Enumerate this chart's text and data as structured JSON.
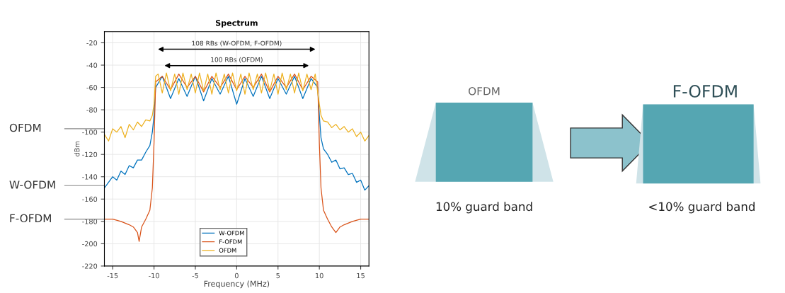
{
  "chart_data": [
    {
      "type": "line",
      "title": "Spectrum",
      "xlabel": "Frequency (MHz)",
      "ylabel": "dBm",
      "xlim": [
        -16,
        16
      ],
      "xticks": [
        -15,
        -10,
        -5,
        0,
        5,
        10,
        15
      ],
      "ylim": [
        -220,
        -10
      ],
      "yticks": [
        -220,
        -200,
        -180,
        -160,
        -140,
        -120,
        -100,
        -80,
        -60,
        -40,
        -20
      ],
      "grid": true,
      "legend": "bottom",
      "series": [
        {
          "name": "W-OFDM",
          "color": "#0072bd",
          "x": [
            -16,
            -15.5,
            -15,
            -14.5,
            -14,
            -13.5,
            -13,
            -12.5,
            -12,
            -11.5,
            -11,
            -10.5,
            -10.2,
            -10,
            -9.8,
            -9,
            -8,
            -7,
            -6,
            -5,
            -4,
            -3,
            -2,
            -1,
            0,
            1,
            2,
            3,
            4,
            5,
            6,
            7,
            8,
            9,
            9.8,
            10,
            10.2,
            10.5,
            11,
            11.5,
            12,
            12.5,
            13,
            13.5,
            14,
            14.5,
            15,
            15.5,
            16
          ],
          "values": [
            -150,
            -145,
            -140,
            -143,
            -135,
            -138,
            -130,
            -132,
            -125,
            -125,
            -118,
            -112,
            -100,
            -85,
            -60,
            -50,
            -70,
            -52,
            -68,
            -50,
            -72,
            -52,
            -66,
            -50,
            -75,
            -52,
            -68,
            -50,
            -70,
            -52,
            -66,
            -50,
            -70,
            -52,
            -60,
            -85,
            -105,
            -115,
            -120,
            -127,
            -125,
            -133,
            -132,
            -138,
            -137,
            -145,
            -143,
            -152,
            -148
          ]
        },
        {
          "name": "F-OFDM",
          "color": "#d95319",
          "x": [
            -16,
            -15,
            -14,
            -13,
            -12.5,
            -12,
            -11.8,
            -11.5,
            -11,
            -10.5,
            -10.2,
            -10,
            -9.8,
            -9,
            -8,
            -7,
            -6,
            -5,
            -4,
            -3,
            -2,
            -1,
            0,
            1,
            2,
            3,
            4,
            5,
            6,
            7,
            8,
            9,
            9.8,
            10,
            10.2,
            10.5,
            11,
            11.5,
            12,
            12.5,
            13,
            14,
            15,
            16
          ],
          "values": [
            -178,
            -178,
            -180,
            -183,
            -185,
            -190,
            -198,
            -185,
            -178,
            -170,
            -150,
            -110,
            -55,
            -50,
            -62,
            -48,
            -60,
            -50,
            -64,
            -50,
            -60,
            -48,
            -62,
            -50,
            -60,
            -48,
            -64,
            -50,
            -60,
            -48,
            -62,
            -50,
            -55,
            -110,
            -150,
            -170,
            -178,
            -185,
            -190,
            -185,
            -183,
            -180,
            -178,
            -178
          ]
        },
        {
          "name": "OFDM",
          "color": "#edb120",
          "x": [
            -16,
            -15.5,
            -15,
            -14.5,
            -14,
            -13.5,
            -13,
            -12.5,
            -12,
            -11.5,
            -11,
            -10.5,
            -10.2,
            -10,
            -9.8,
            -9.5,
            -9,
            -8.5,
            -8,
            -7.5,
            -7,
            -6.5,
            -6,
            -5.5,
            -5,
            -4.5,
            -4,
            -3.5,
            -3,
            -2.5,
            -2,
            -1.5,
            -1,
            -0.5,
            0,
            0.5,
            1,
            1.5,
            2,
            2.5,
            3,
            3.5,
            4,
            4.5,
            5,
            5.5,
            6,
            6.5,
            7,
            7.5,
            8,
            8.5,
            9,
            9.5,
            10,
            10.2,
            10.5,
            11,
            11.5,
            12,
            12.5,
            13,
            13.5,
            14,
            14.5,
            15,
            15.5,
            16
          ],
          "values": [
            -102,
            -108,
            -97,
            -100,
            -95,
            -105,
            -93,
            -98,
            -91,
            -95,
            -89,
            -90,
            -85,
            -75,
            -50,
            -48,
            -65,
            -47,
            -63,
            -48,
            -66,
            -47,
            -62,
            -48,
            -65,
            -47,
            -63,
            -48,
            -66,
            -47,
            -62,
            -48,
            -65,
            -47,
            -63,
            -48,
            -66,
            -47,
            -62,
            -48,
            -65,
            -47,
            -63,
            -48,
            -66,
            -47,
            -62,
            -48,
            -65,
            -47,
            -63,
            -48,
            -62,
            -48,
            -75,
            -85,
            -90,
            -91,
            -96,
            -93,
            -98,
            -95,
            -100,
            -97,
            -104,
            -100,
            -108,
            -103
          ]
        }
      ],
      "annotations": [
        "108 RBs (W-OFDM, F-OFDM)",
        "100 RBs (OFDM)",
        "OFDM",
        "W-OFDM",
        "F-OFDM"
      ]
    },
    {
      "type": "other",
      "annotations": [
        "OFDM",
        "F-OFDM",
        "10% guard band",
        "<10% guard band"
      ]
    }
  ]
}
